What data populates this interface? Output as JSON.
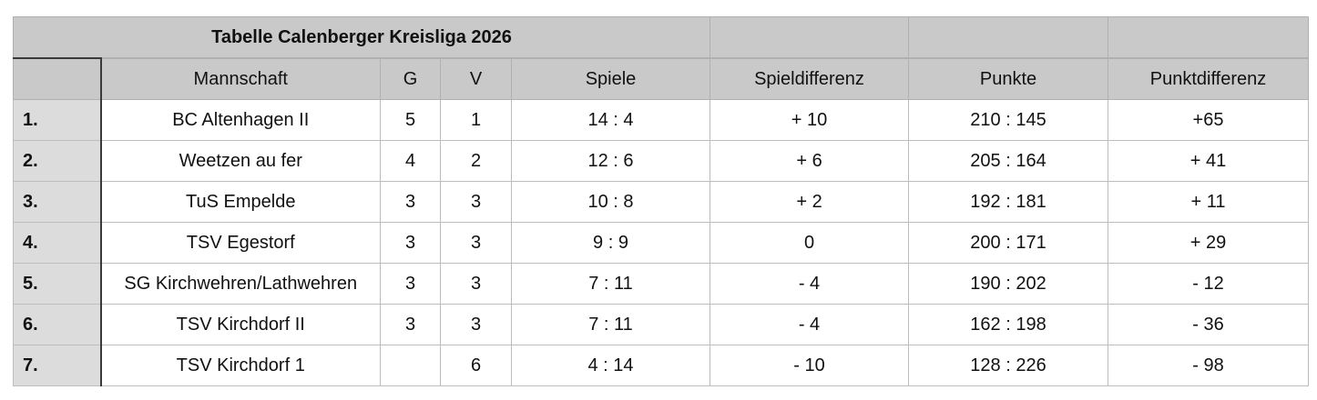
{
  "table": {
    "title": "Tabelle Calenberger Kreisliga 2026",
    "columns": [
      "Mannschaft",
      "G",
      "V",
      "Spiele",
      "Spieldifferenz",
      "Punkte",
      "Punktdifferenz"
    ],
    "rows": [
      {
        "rank": "1.",
        "team": "BC Altenhagen II",
        "g": "5",
        "v": "1",
        "spiele": "14 : 4",
        "spieldifferenz": "+ 10",
        "punkte": "210 : 145",
        "punktdifferenz": "+65"
      },
      {
        "rank": "2.",
        "team": "Weetzen au fer",
        "g": "4",
        "v": "2",
        "spiele": "12 : 6",
        "spieldifferenz": "+ 6",
        "punkte": "205 : 164",
        "punktdifferenz": "+ 41"
      },
      {
        "rank": "3.",
        "team": "TuS Empelde",
        "g": "3",
        "v": "3",
        "spiele": "10 : 8",
        "spieldifferenz": "+ 2",
        "punkte": "192 : 181",
        "punktdifferenz": "+ 11"
      },
      {
        "rank": "4.",
        "team": "TSV Egestorf",
        "g": "3",
        "v": "3",
        "spiele": "9 : 9",
        "spieldifferenz": "0",
        "punkte": "200 : 171",
        "punktdifferenz": "+ 29"
      },
      {
        "rank": "5.",
        "team": "SG Kirchwehren/Lathwehren",
        "g": "3",
        "v": "3",
        "spiele": "7 : 11",
        "spieldifferenz": "- 4",
        "punkte": "190 : 202",
        "punktdifferenz": "- 12"
      },
      {
        "rank": "6.",
        "team": "TSV Kirchdorf II",
        "g": "3",
        "v": "3",
        "spiele": "7 : 11",
        "spieldifferenz": "- 4",
        "punkte": "162 : 198",
        "punktdifferenz": "- 36"
      },
      {
        "rank": "7.",
        "team": "TSV Kirchdorf 1",
        "g": "",
        "v": "6",
        "spiele": "4 : 14",
        "spieldifferenz": "- 10",
        "punkte": "128 : 226",
        "punktdifferenz": "- 98"
      }
    ]
  }
}
